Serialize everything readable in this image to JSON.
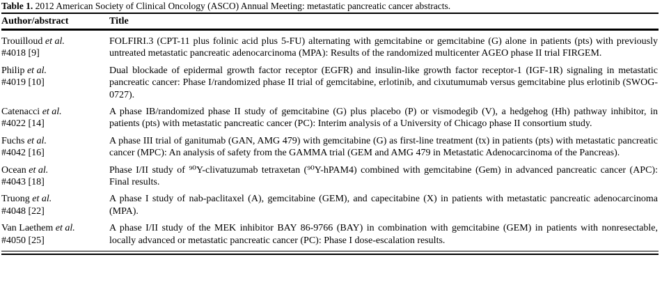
{
  "colors": {
    "text": "#000000",
    "background": "#ffffff",
    "rule": "#000000"
  },
  "table": {
    "caption": {
      "label": "Table 1.",
      "text": "2012 American Society of Clinical Oncology (ASCO) Annual Meeting: metastatic pancreatic cancer abstracts."
    },
    "columns": {
      "author": "Author/abstract",
      "title": "Title"
    },
    "rows": [
      {
        "author": "Trouilloud",
        "etal": "et al.",
        "abstract_id": "#4018 [9]",
        "title": "FOLFIRI.3 (CPT-11 plus folinic acid plus 5-FU) alternating with gemcitabine or gemcitabine (G) alone in patients (pts) with previously untreated metastatic pancreatic adenocarcinoma (MPA): Results of the randomized multicenter AGEO phase II trial FIRGEM."
      },
      {
        "author": "Philip",
        "etal": "et al.",
        "abstract_id": "#4019 [10]",
        "title": "Dual blockade of epidermal growth factor receptor (EGFR) and insulin-like growth factor receptor-1 (IGF-1R) signaling in metastatic pancreatic cancer: Phase I/randomized phase II trial of gemcitabine, erlotinib, and cixutumumab versus gemcitabine plus erlotinib (SWOG-0727)."
      },
      {
        "author": "Catenacci",
        "etal": "et al.",
        "abstract_id": "#4022 [14]",
        "title": "A phase IB/randomized phase II study of gemcitabine (G) plus placebo (P) or vismodegib (V), a hedgehog (Hh) pathway inhibitor, in patients (pts) with metastatic pancreatic cancer (PC): Interim analysis of a University of Chicago phase II consortium study."
      },
      {
        "author": "Fuchs",
        "etal": "et al.",
        "abstract_id": "#4042 [16]",
        "title": "A phase III trial of ganitumab (GAN, AMG 479) with gemcitabine (G) as first-line treatment (tx) in patients (pts) with metastatic pancreatic cancer (MPC): An analysis of safety from the GAMMA trial (GEM and AMG 479 in Metastatic Adenocarcinoma of the Pancreas)."
      },
      {
        "author": "Ocean",
        "etal": "et al.",
        "abstract_id": "#4043 [18]",
        "title": "Phase I/II study of ⁹⁰Y-clivatuzumab tetraxetan (⁹⁰Y-hPAM4) combined with gemcitabine (Gem) in advanced pancreatic cancer (APC): Final results."
      },
      {
        "author": "Truong",
        "etal": "et al.",
        "abstract_id": "#4048 [22]",
        "title": "A phase I study of nab-paclitaxel (A), gemcitabine (GEM), and capecitabine (X) in patients with metastatic pancreatic adenocarcinoma (MPA)."
      },
      {
        "author": "Van Laethem",
        "etal": "et al.",
        "abstract_id": "#4050 [25]",
        "title": "A phase I/II study of the MEK inhibitor BAY 86-9766 (BAY) in combination with gemcitabine (GEM) in patients with nonresectable, locally advanced or metastatic pancreatic cancer (PC): Phase I dose-escalation results."
      }
    ]
  }
}
